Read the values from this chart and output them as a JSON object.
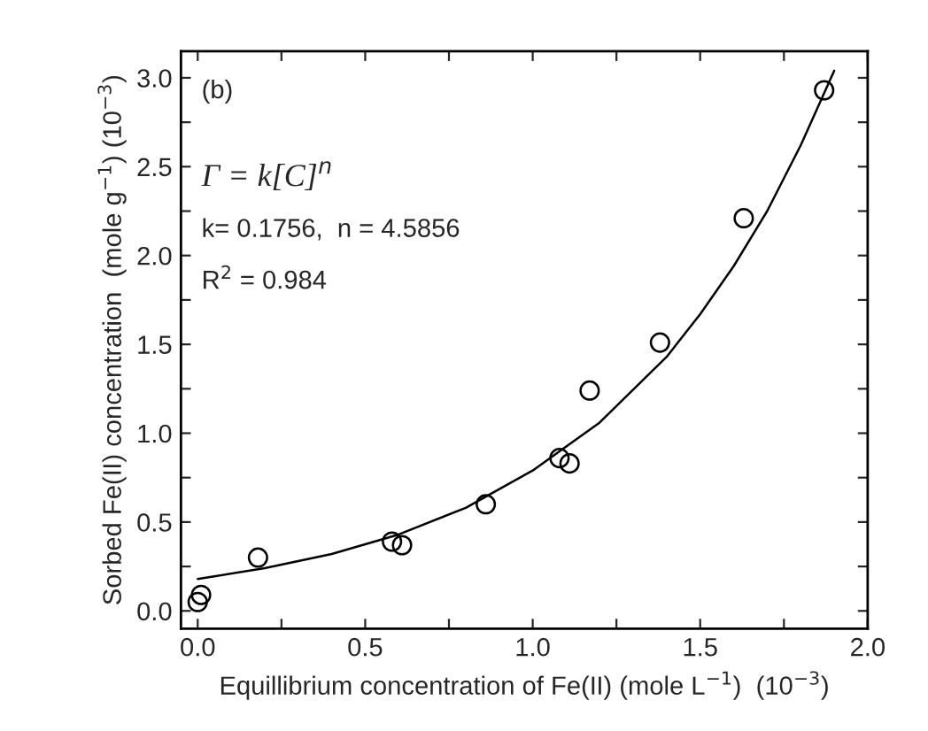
{
  "chart_data": {
    "type": "scatter",
    "xlabel": "Equillibrium concentration of Fe(II) (mole L$^{−1}$)  (10$^{−3}$)",
    "ylabel": "Sorbed Fe(II) concentration  (mole g$^{−1}$) (10$^{−3}$)",
    "annotations": [
      "(b)",
      "Γ = k[C]$^{n}$",
      "k= 0.1756,  n = 4.5856",
      "R$^{2}$ = 0.984"
    ],
    "series": [
      {
        "color": "#000000",
        "marker": "circle",
        "x": [
          0.0,
          0.01,
          0.18,
          0.58,
          0.61,
          0.86,
          1.08,
          1.11,
          1.17,
          1.38,
          1.63,
          1.87
        ],
        "values": [
          0.05,
          0.09,
          0.3,
          0.39,
          0.37,
          0.6,
          0.86,
          0.83,
          1.24,
          1.51,
          2.21,
          2.93
        ]
      },
      {
        "type": "line",
        "color": "#000000",
        "line_style": "solid",
        "x": [
          0.0,
          0.2,
          0.4,
          0.6,
          0.8,
          1.0,
          1.2,
          1.4,
          1.5,
          1.6,
          1.7,
          1.8,
          1.9
        ],
        "values": [
          0.18,
          0.24,
          0.32,
          0.43,
          0.58,
          0.79,
          1.06,
          1.43,
          1.67,
          1.94,
          2.25,
          2.62,
          3.04
        ]
      }
    ],
    "xlim": [
      -0.05,
      2.0
    ],
    "ylim": [
      -0.1,
      3.15
    ],
    "xticks": [
      {
        "value": 0.0,
        "label": "0.0"
      },
      {
        "value": 0.25,
        "label": null
      },
      {
        "value": 0.5,
        "label": "0.5"
      },
      {
        "value": 0.75,
        "label": null
      },
      {
        "value": 1.0,
        "label": "1.0"
      },
      {
        "value": 1.25,
        "label": null
      },
      {
        "value": 1.5,
        "label": "1.5"
      },
      {
        "value": 1.75,
        "label": null
      },
      {
        "value": 2.0,
        "label": "2.0"
      }
    ],
    "yticks": [
      {
        "value": 0.0,
        "label": "0.0"
      },
      {
        "value": 0.25,
        "label": null
      },
      {
        "value": 0.5,
        "label": "0.5"
      },
      {
        "value": 0.75,
        "label": null
      },
      {
        "value": 1.0,
        "label": "1.0"
      },
      {
        "value": 1.25,
        "label": null
      },
      {
        "value": 1.5,
        "label": "1.5"
      },
      {
        "value": 1.75,
        "label": null
      },
      {
        "value": 2.0,
        "label": "2.0"
      },
      {
        "value": 2.25,
        "label": null
      },
      {
        "value": 2.5,
        "label": "2.5"
      },
      {
        "value": 2.75,
        "label": null
      },
      {
        "value": 3.0,
        "label": "3.0"
      }
    ],
    "grid": false,
    "legend": false
  }
}
